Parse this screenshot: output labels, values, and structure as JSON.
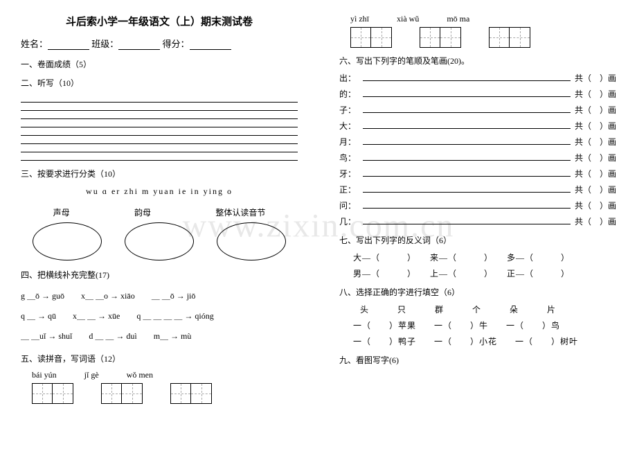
{
  "title": "斗后索小学一年级语文（上）期末测试卷",
  "header": {
    "name": "姓名：",
    "class": "班级：",
    "score": "得分："
  },
  "s1": "一、卷面成绩（5）",
  "s2": "二、听写（10）",
  "s3": "三、按要求进行分类（10）",
  "s3_pinyin": "wu  ɑ  er  zhi  m  yuan  ie  in  ying  o",
  "s3_labels": [
    "声母",
    "韵母",
    "整体认读音节"
  ],
  "s4": "四、把横线补充完整(17)",
  "s4_rows": [
    [
      "g ＿ō → guō",
      "x＿ ＿o → xiāo",
      "＿ ＿ō → jiō"
    ],
    [
      "q ＿ → qū",
      "x＿ ＿ → xūe",
      "q ＿ ＿ ＿ ＿ → qióng"
    ],
    [
      "＿ ＿uǐ → shuǐ",
      "d ＿ ＿ → duì",
      "m＿ → mù"
    ]
  ],
  "s5": "五、读拼音，写词语（12）",
  "s5_pinyin1": [
    "bái   yún",
    "jǐ   gè",
    "wǒ   men"
  ],
  "s5_pinyin2": [
    "yì   zhī",
    "xià   wǔ",
    "mō   ma"
  ],
  "s6": "六、写出下列字的笔顺及笔画(20)。",
  "s6_chars": [
    "出：",
    "的：",
    "子：",
    "大：",
    "月：",
    "鸟：",
    "牙：",
    "正：",
    "问：",
    "几："
  ],
  "s6_suffix_a": "共（",
  "s6_suffix_b": "）画",
  "s7": "七、写出下列字的反义词（6）",
  "s7_row1": "大—（　　　）　　来—（　　　）　　多—（　　　）",
  "s7_row2": "男—（　　　）　　上—（　　　）　　正—（　　　）",
  "s8": "八、选择正确的字进行填空（6）",
  "s8_bank": "头　　只　　群　　个　　朵　　片",
  "s8_row1": "一（　　）苹果　　一（　　）牛　　一（　　）鸟",
  "s8_row2": "一（　　）鸭子　　一（　　）小花　　一（　　）树叶",
  "s9": "九、看图写字(6)",
  "watermark": "www.zixin.com.cn"
}
